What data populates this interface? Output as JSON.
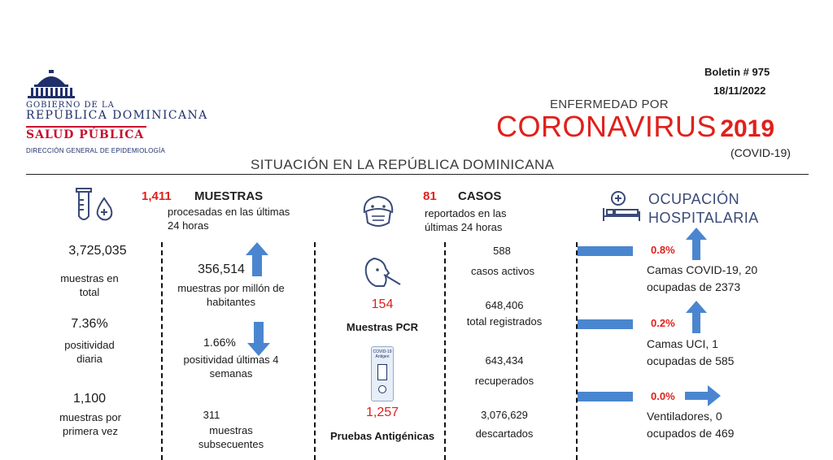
{
  "header": {
    "bulletin": "Boletin # 975",
    "date": "18/11/2022",
    "logo": {
      "line1": "GOBIERNO DE LA",
      "line2": "REPÚBLICA DOMINICANA",
      "line3": "SALUD PÚBLICA",
      "line4": "DIRECCIÓN GENERAL DE EPIDEMIOLOGÍA"
    },
    "disease_pre": "ENFERMEDAD POR",
    "disease_main": "CORONAVIRUS",
    "disease_year": "2019",
    "disease_code": "(COVID-19)",
    "situation": "SITUACIÓN EN LA REPÚBLICA DOMINICANA"
  },
  "tests": {
    "daily_count": "1,411",
    "title": "MUESTRAS",
    "subtitle": "procesadas en las últimas 24 horas",
    "total_value": "3,725,035",
    "total_label": "muestras en total",
    "positivity_value": "7.36%",
    "positivity_label": "positividad diaria",
    "first_time_value": "1,100",
    "first_time_label": "muestras por primera vez",
    "per_million_value": "356,514",
    "per_million_label": "muestras por millón de habitantes",
    "weeks_value": "1.66%",
    "weeks_label": "positividad últimas 4 semanas",
    "subsequent_value": "311",
    "subsequent_label": "muestras subsecuentes",
    "pcr_value": "154",
    "pcr_label": "Muestras PCR",
    "antigen_value": "1,257",
    "antigen_label": "Pruebas Antigénicas",
    "antigen_kit_text": "COVID-19 Antigen"
  },
  "cases": {
    "daily_count": "81",
    "title": "CASOS",
    "subtitle": "reportados en las últimas 24 horas",
    "active_value": "588",
    "active_label": "casos activos",
    "registered_value": "648,406",
    "registered_label": "total registrados",
    "recovered_value": "643,434",
    "recovered_label": "recuperados",
    "discarded_value": "3,076,629",
    "discarded_label": "descartados"
  },
  "hospital": {
    "title_line1": "OCUPACIÓN",
    "title_line2": "HOSPITALARIA",
    "covid_pct": "0.8%",
    "covid_line1": "Camas COVID-19,  20",
    "covid_line2": "ocupadas de 2373",
    "icu_pct": "0.2%",
    "icu_line1": "Camas UCI,  1",
    "icu_line2": "ocupadas de 585",
    "vent_pct": "0.0%",
    "vent_line1": "Ventiladores, 0",
    "vent_line2": "ocupados de 469"
  },
  "colors": {
    "accent_red": "#e0201b",
    "arrow_blue": "#4a86cf",
    "navy": "#1f2f6b"
  }
}
